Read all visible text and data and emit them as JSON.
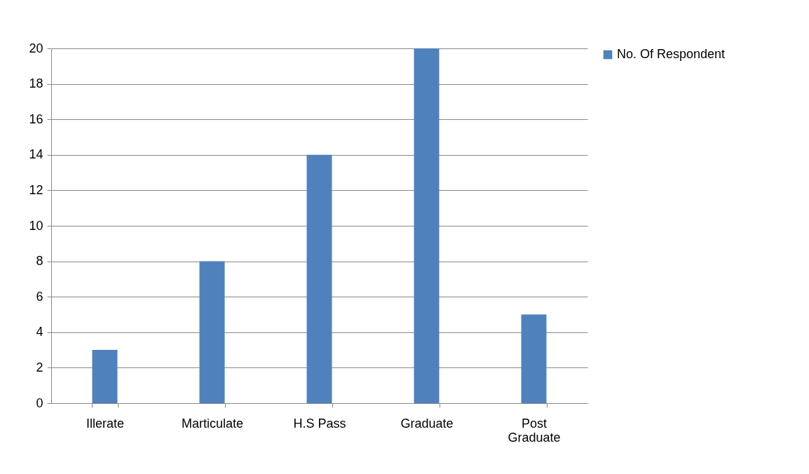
{
  "chart_data": {
    "type": "bar",
    "categories": [
      "Illerate",
      "Marticulate",
      "H.S Pass",
      "Graduate",
      "Post Graduate"
    ],
    "series": [
      {
        "name": "No. Of Respondent",
        "color": "#4f81bd",
        "values": [
          3,
          8,
          14,
          20,
          5
        ]
      }
    ],
    "ylim": [
      0,
      20
    ],
    "yticks": [
      0,
      2,
      4,
      6,
      8,
      10,
      12,
      14,
      16,
      18,
      20
    ],
    "grid": "y",
    "legend": "right"
  }
}
